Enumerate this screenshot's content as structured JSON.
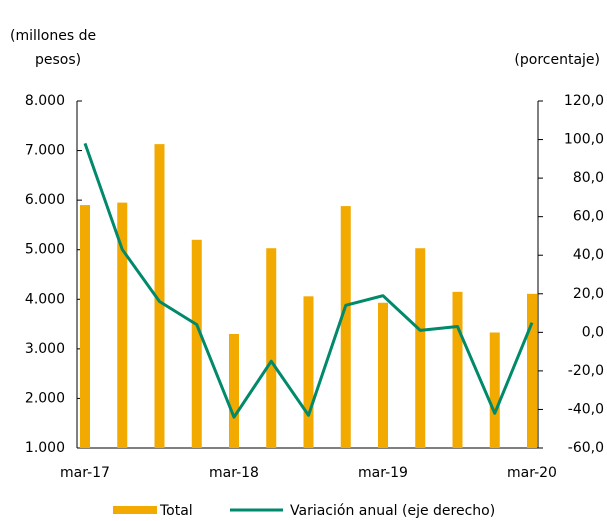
{
  "chart_data": {
    "type": "bar-line",
    "ylabel": [
      "(millones  de",
      "pesos)"
    ],
    "y2label": "(porcentaje)",
    "categories": [
      "mar-17",
      null,
      null,
      null,
      "mar-18",
      null,
      null,
      null,
      "mar-19",
      null,
      null,
      null,
      "mar-20"
    ],
    "series": [
      {
        "name": "Total",
        "type": "bar",
        "color": "#f2a900",
        "values": [
          5900,
          5950,
          7130,
          5200,
          3300,
          5030,
          4060,
          5880,
          3930,
          5030,
          4150,
          3330,
          4110
        ]
      },
      {
        "name": "Variación anual (eje derecho)",
        "type": "line",
        "axis": "y2",
        "color": "#00896b",
        "values": [
          98,
          43,
          16,
          4,
          -44,
          -15,
          -43,
          14,
          19,
          1,
          3,
          -42,
          5
        ]
      }
    ],
    "ylim": [
      1000,
      8000
    ],
    "yticks": [
      {
        "value": 1000,
        "label": "1.000"
      },
      {
        "value": 2000,
        "label": "2.000"
      },
      {
        "value": 3000,
        "label": "3.000"
      },
      {
        "value": 4000,
        "label": "4.000"
      },
      {
        "value": 5000,
        "label": "5.000"
      },
      {
        "value": 6000,
        "label": "6.000"
      },
      {
        "value": 7000,
        "label": "7.000"
      },
      {
        "value": 8000,
        "label": "8.000"
      }
    ],
    "y2lim": [
      -60,
      120
    ],
    "y2ticks": [
      {
        "value": -60,
        "label": "-60,0"
      },
      {
        "value": -40,
        "label": "-40,0"
      },
      {
        "value": -20,
        "label": "-20,0"
      },
      {
        "value": 0,
        "label": "0,0"
      },
      {
        "value": 20,
        "label": "20,0"
      },
      {
        "value": 40,
        "label": "40,0"
      },
      {
        "value": 60,
        "label": "60,0"
      },
      {
        "value": 80,
        "label": "80,0"
      },
      {
        "value": 100,
        "label": "100,0"
      },
      {
        "value": 120,
        "label": "120,0"
      }
    ]
  }
}
